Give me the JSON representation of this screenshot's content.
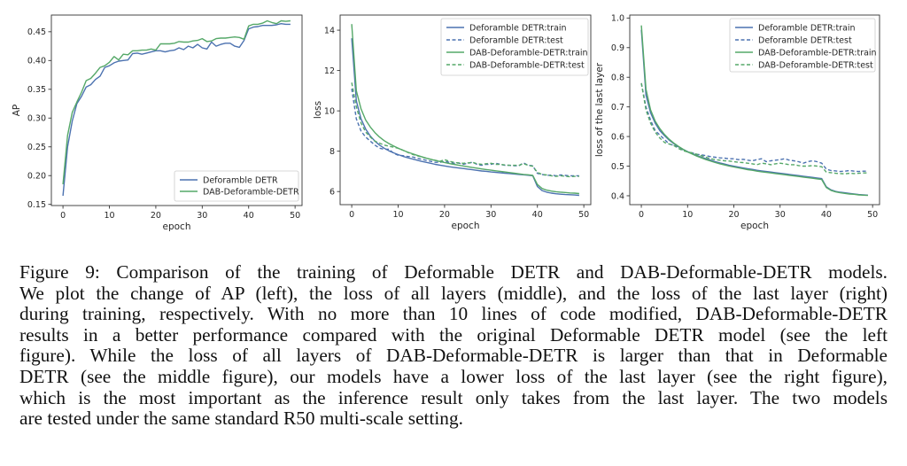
{
  "chart_data": [
    {
      "type": "line",
      "title": "",
      "xlabel": "epoch",
      "ylabel": "AP",
      "xlim": [
        -2.5,
        51.5
      ],
      "ylim": [
        0.148,
        0.479
      ],
      "xticks": [
        0,
        10,
        20,
        30,
        40,
        50
      ],
      "yticks": [
        0.15,
        0.2,
        0.25,
        0.3,
        0.35,
        0.4,
        0.45
      ],
      "ytick_labels": [
        "0.15",
        "0.20",
        "0.25",
        "0.30",
        "0.35",
        "0.40",
        "0.45"
      ],
      "grid": false,
      "legend": "lower-right",
      "x": [
        0,
        1,
        2,
        3,
        4,
        5,
        6,
        7,
        8,
        9,
        10,
        11,
        12,
        13,
        14,
        15,
        16,
        17,
        18,
        19,
        20,
        21,
        22,
        23,
        24,
        25,
        26,
        27,
        28,
        29,
        30,
        31,
        32,
        33,
        34,
        35,
        36,
        37,
        38,
        39,
        40,
        41,
        42,
        43,
        44,
        45,
        46,
        47,
        48,
        49
      ],
      "series": [
        {
          "name": "Deforamble DETR",
          "color": "#4c72b0",
          "dash": false,
          "values": [
            0.165,
            0.25,
            0.295,
            0.325,
            0.338,
            0.354,
            0.358,
            0.367,
            0.373,
            0.388,
            0.391,
            0.396,
            0.399,
            0.4,
            0.401,
            0.412,
            0.413,
            0.411,
            0.413,
            0.415,
            0.417,
            0.417,
            0.415,
            0.417,
            0.418,
            0.422,
            0.419,
            0.425,
            0.422,
            0.428,
            0.422,
            0.42,
            0.432,
            0.425,
            0.428,
            0.43,
            0.43,
            0.425,
            0.423,
            0.435,
            0.455,
            0.458,
            0.459,
            0.461,
            0.461,
            0.461,
            0.462,
            0.464,
            0.463,
            0.463
          ]
        },
        {
          "name": "DAB-Deforamble-DETR",
          "color": "#55a868",
          "dash": false,
          "values": [
            0.185,
            0.27,
            0.31,
            0.328,
            0.345,
            0.365,
            0.369,
            0.378,
            0.388,
            0.391,
            0.397,
            0.407,
            0.401,
            0.411,
            0.41,
            0.417,
            0.417,
            0.418,
            0.418,
            0.42,
            0.418,
            0.429,
            0.429,
            0.429,
            0.43,
            0.433,
            0.432,
            0.432,
            0.434,
            0.435,
            0.438,
            0.433,
            0.434,
            0.438,
            0.439,
            0.439,
            0.44,
            0.441,
            0.44,
            0.437,
            0.46,
            0.463,
            0.463,
            0.465,
            0.469,
            0.466,
            0.464,
            0.469,
            0.468,
            0.469
          ]
        }
      ]
    },
    {
      "type": "line",
      "title": "",
      "xlabel": "epoch",
      "ylabel": "loss",
      "xlim": [
        -2.5,
        51.5
      ],
      "ylim": [
        5.35,
        14.75
      ],
      "xticks": [
        0,
        10,
        20,
        30,
        40,
        50
      ],
      "yticks": [
        6,
        8,
        10,
        12,
        14
      ],
      "ytick_labels": [
        "6",
        "8",
        "10",
        "12",
        "14"
      ],
      "grid": false,
      "legend": "upper-right",
      "x": [
        0,
        1,
        2,
        3,
        4,
        5,
        6,
        7,
        8,
        9,
        10,
        11,
        12,
        13,
        14,
        15,
        16,
        17,
        18,
        19,
        20,
        21,
        22,
        23,
        24,
        25,
        26,
        27,
        28,
        29,
        30,
        31,
        32,
        33,
        34,
        35,
        36,
        37,
        38,
        39,
        40,
        41,
        42,
        43,
        44,
        45,
        46,
        47,
        48,
        49
      ],
      "series": [
        {
          "name": "Deforamble DETR:train",
          "color": "#4c72b0",
          "dash": false,
          "values": [
            13.6,
            10.5,
            9.6,
            9.1,
            8.75,
            8.5,
            8.3,
            8.15,
            8.02,
            7.92,
            7.83,
            7.75,
            7.68,
            7.62,
            7.56,
            7.5,
            7.45,
            7.4,
            7.35,
            7.31,
            7.27,
            7.23,
            7.2,
            7.17,
            7.14,
            7.11,
            7.08,
            7.05,
            7.02,
            7.0,
            6.97,
            6.95,
            6.93,
            6.91,
            6.89,
            6.87,
            6.85,
            6.83,
            6.81,
            6.78,
            6.25,
            6.05,
            5.97,
            5.92,
            5.89,
            5.87,
            5.85,
            5.84,
            5.83,
            5.81
          ]
        },
        {
          "name": "Deforamble DETR:test",
          "color": "#4c72b0",
          "dash": true,
          "values": [
            11.1,
            9.6,
            9.0,
            8.7,
            8.5,
            8.3,
            8.15,
            8.1,
            8.1,
            7.9,
            7.8,
            7.78,
            7.74,
            7.72,
            7.66,
            7.6,
            7.55,
            7.5,
            7.45,
            7.45,
            7.5,
            7.45,
            7.4,
            7.42,
            7.35,
            7.4,
            7.45,
            7.35,
            7.3,
            7.35,
            7.35,
            7.4,
            7.35,
            7.3,
            7.3,
            7.28,
            7.28,
            7.42,
            7.3,
            7.28,
            6.9,
            6.85,
            6.8,
            6.82,
            6.78,
            6.82,
            6.8,
            6.78,
            6.78,
            6.78
          ]
        },
        {
          "name": "DAB-Deforamble-DETR:train",
          "color": "#55a868",
          "dash": false,
          "values": [
            14.3,
            11.0,
            10.1,
            9.55,
            9.2,
            8.92,
            8.7,
            8.52,
            8.38,
            8.26,
            8.15,
            8.05,
            7.96,
            7.88,
            7.8,
            7.73,
            7.66,
            7.6,
            7.54,
            7.49,
            7.44,
            7.39,
            7.35,
            7.31,
            7.27,
            7.23,
            7.19,
            7.16,
            7.12,
            7.09,
            7.06,
            7.03,
            7.0,
            6.97,
            6.94,
            6.91,
            6.88,
            6.85,
            6.83,
            6.8,
            6.35,
            6.15,
            6.07,
            6.02,
            5.99,
            5.97,
            5.95,
            5.93,
            5.92,
            5.9
          ]
        },
        {
          "name": "DAB-Deforamble-DETR:test",
          "color": "#55a868",
          "dash": true,
          "values": [
            11.4,
            10.2,
            9.4,
            8.95,
            8.7,
            8.5,
            8.4,
            8.3,
            8.25,
            8.2,
            8.15,
            8.05,
            7.95,
            7.85,
            7.78,
            7.72,
            7.65,
            7.6,
            7.55,
            7.5,
            7.58,
            7.5,
            7.45,
            7.42,
            7.4,
            7.42,
            7.45,
            7.38,
            7.35,
            7.38,
            7.4,
            7.35,
            7.35,
            7.32,
            7.3,
            7.3,
            7.3,
            7.38,
            7.3,
            7.25,
            6.95,
            6.85,
            6.82,
            6.78,
            6.75,
            6.78,
            6.76,
            6.74,
            6.75,
            6.75
          ]
        }
      ]
    },
    {
      "type": "line",
      "title": "",
      "xlabel": "epoch",
      "ylabel": "loss of the last layer",
      "xlim": [
        -2.5,
        51.5
      ],
      "ylim": [
        0.37,
        1.01
      ],
      "xticks": [
        0,
        10,
        20,
        30,
        40,
        50
      ],
      "yticks": [
        0.4,
        0.5,
        0.6,
        0.7,
        0.8,
        0.9,
        1.0
      ],
      "ytick_labels": [
        "0.4",
        "0.5",
        "0.6",
        "0.7",
        "0.8",
        "0.9",
        "1.0"
      ],
      "grid": false,
      "legend": "upper-right",
      "x": [
        0,
        1,
        2,
        3,
        4,
        5,
        6,
        7,
        8,
        9,
        10,
        11,
        12,
        13,
        14,
        15,
        16,
        17,
        18,
        19,
        20,
        21,
        22,
        23,
        24,
        25,
        26,
        27,
        28,
        29,
        30,
        31,
        32,
        33,
        34,
        35,
        36,
        37,
        38,
        39,
        40,
        41,
        42,
        43,
        44,
        45,
        46,
        47,
        48,
        49
      ],
      "series": [
        {
          "name": "Deforamble DETR:train",
          "color": "#4c72b0",
          "dash": false,
          "values": [
            0.96,
            0.74,
            0.68,
            0.645,
            0.62,
            0.603,
            0.588,
            0.576,
            0.566,
            0.557,
            0.549,
            0.542,
            0.536,
            0.53,
            0.525,
            0.52,
            0.515,
            0.511,
            0.507,
            0.503,
            0.5,
            0.497,
            0.494,
            0.491,
            0.489,
            0.486,
            0.484,
            0.482,
            0.48,
            0.478,
            0.476,
            0.474,
            0.472,
            0.47,
            0.468,
            0.466,
            0.464,
            0.462,
            0.46,
            0.458,
            0.43,
            0.42,
            0.415,
            0.412,
            0.41,
            0.408,
            0.406,
            0.404,
            0.403,
            0.402
          ]
        },
        {
          "name": "Deforamble DETR:test",
          "color": "#4c72b0",
          "dash": true,
          "values": [
            0.78,
            0.7,
            0.655,
            0.62,
            0.605,
            0.59,
            0.575,
            0.57,
            0.565,
            0.555,
            0.548,
            0.545,
            0.54,
            0.538,
            0.535,
            0.532,
            0.53,
            0.528,
            0.527,
            0.525,
            0.525,
            0.522,
            0.523,
            0.52,
            0.518,
            0.522,
            0.525,
            0.515,
            0.518,
            0.52,
            0.522,
            0.525,
            0.52,
            0.518,
            0.515,
            0.51,
            0.515,
            0.518,
            0.515,
            0.51,
            0.49,
            0.485,
            0.484,
            0.482,
            0.483,
            0.485,
            0.483,
            0.482,
            0.483,
            0.483
          ]
        },
        {
          "name": "DAB-Deforamble-DETR:train",
          "color": "#55a868",
          "dash": false,
          "values": [
            0.975,
            0.76,
            0.69,
            0.652,
            0.627,
            0.607,
            0.591,
            0.578,
            0.567,
            0.557,
            0.548,
            0.541,
            0.534,
            0.528,
            0.522,
            0.517,
            0.512,
            0.508,
            0.504,
            0.5,
            0.497,
            0.494,
            0.491,
            0.488,
            0.486,
            0.483,
            0.481,
            0.479,
            0.477,
            0.475,
            0.473,
            0.471,
            0.469,
            0.467,
            0.465,
            0.463,
            0.461,
            0.459,
            0.457,
            0.455,
            0.428,
            0.418,
            0.413,
            0.41,
            0.408,
            0.406,
            0.405,
            0.403,
            0.402,
            0.401
          ]
        },
        {
          "name": "DAB-Deforamble-DETR:test",
          "color": "#55a868",
          "dash": true,
          "values": [
            0.78,
            0.69,
            0.645,
            0.615,
            0.595,
            0.58,
            0.575,
            0.57,
            0.56,
            0.552,
            0.548,
            0.545,
            0.54,
            0.535,
            0.53,
            0.525,
            0.522,
            0.52,
            0.518,
            0.517,
            0.515,
            0.513,
            0.512,
            0.51,
            0.508,
            0.505,
            0.51,
            0.508,
            0.505,
            0.508,
            0.51,
            0.508,
            0.505,
            0.505,
            0.502,
            0.5,
            0.5,
            0.502,
            0.5,
            0.498,
            0.48,
            0.478,
            0.476,
            0.475,
            0.474,
            0.476,
            0.475,
            0.476,
            0.477,
            0.477
          ]
        }
      ]
    }
  ],
  "caption": {
    "lines": [
      "Figure 9: Comparison of the training of Deformable DETR and DAB-Deformable-DETR models.",
      "We plot the change of AP (left), the loss of all layers (middle), and the loss of the last layer (right)",
      "during training, respectively. With no more than 10 lines of code modified, DAB-Deformable-DETR",
      "results in a better performance compared with the original Deformable DETR model (see the left",
      "figure). While the loss of all layers of DAB-Deformable-DETR is larger than that in Deformable",
      "DETR (see the middle figure), our models have a lower loss of the last layer (see the right figure),",
      "which is the most important as the inference result only takes from the last layer. The two models",
      "are tested under the same standard R50 multi-scale setting."
    ]
  }
}
